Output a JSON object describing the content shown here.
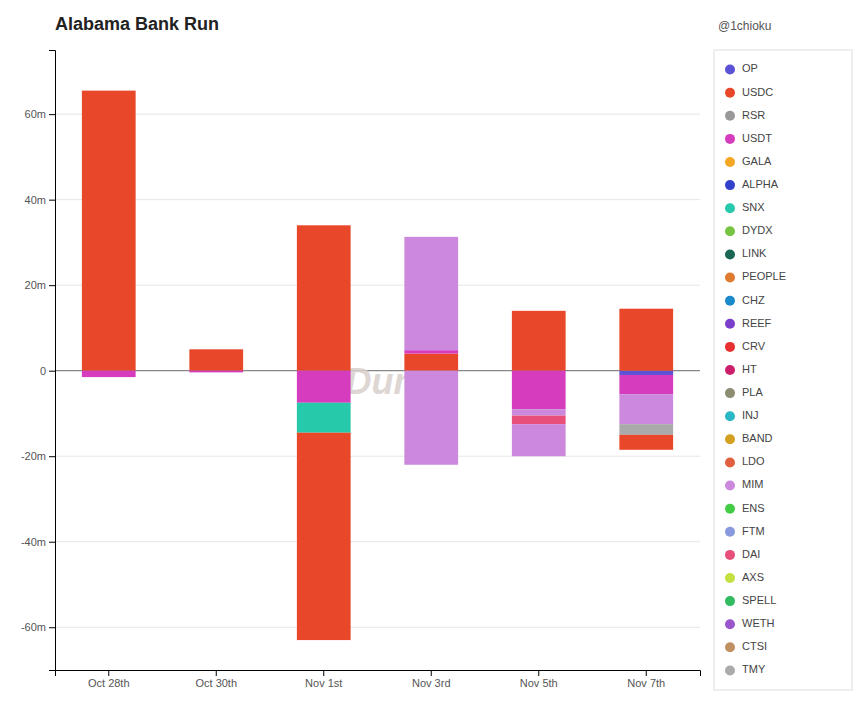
{
  "chart_data": {
    "type": "bar",
    "title": "Alabama Bank Run",
    "annotations": [
      "Dune",
      "@1chioku"
    ],
    "stacked": true,
    "grid": true,
    "legend": "right",
    "categories": [
      "Oct 28th",
      "Oct 30th",
      "Nov 1st",
      "Nov 3rd",
      "Nov 5th",
      "Nov 7th"
    ],
    "ylim": [
      -70,
      75
    ],
    "yticks": [
      {
        "value": -60,
        "label": "-60m"
      },
      {
        "value": -40,
        "label": "-40m"
      },
      {
        "value": -20,
        "label": "-20m"
      },
      0,
      {
        "value": 20,
        "label": "20m"
      },
      {
        "value": 40,
        "label": "40m"
      },
      {
        "value": 60,
        "label": "60m"
      }
    ],
    "series": [
      {
        "name": "OP",
        "color": "#5b52d6",
        "values": [
          null,
          null,
          null,
          null,
          null,
          -1.0
        ]
      },
      {
        "name": "USDC",
        "color": "#e8472a",
        "values": [
          65.5,
          5.0,
          34.0,
          4.0,
          14.0,
          14.5
        ]
      },
      {
        "name": "RSR",
        "color": "#999999",
        "values": [
          null,
          null,
          null,
          null,
          null,
          null
        ]
      },
      {
        "name": "USDT",
        "color": "#d63dbe",
        "values": [
          -1.5,
          -0.4,
          -7.5,
          0.8,
          -9.0,
          -4.5
        ]
      },
      {
        "name": "GALA",
        "color": "#f5a623",
        "values": [
          null,
          null,
          null,
          null,
          null,
          null
        ]
      },
      {
        "name": "ALPHA",
        "color": "#3340cc",
        "values": [
          null,
          null,
          null,
          null,
          null,
          null
        ]
      },
      {
        "name": "SNX",
        "color": "#26c9aa",
        "values": [
          null,
          null,
          -7.0,
          null,
          null,
          null
        ]
      },
      {
        "name": "DYDX",
        "color": "#76c442",
        "values": [
          null,
          null,
          null,
          null,
          null,
          null
        ]
      },
      {
        "name": "LINK",
        "color": "#1a6655",
        "values": [
          null,
          null,
          null,
          null,
          null,
          null
        ]
      },
      {
        "name": "PEOPLE",
        "color": "#e07a30",
        "values": [
          null,
          null,
          null,
          null,
          null,
          null
        ]
      },
      {
        "name": "CHZ",
        "color": "#1a8acc",
        "values": [
          null,
          null,
          null,
          null,
          null,
          null
        ]
      },
      {
        "name": "REEF",
        "color": "#7c3fcc",
        "values": [
          null,
          null,
          null,
          null,
          null,
          null
        ]
      },
      {
        "name": "CRV",
        "color": "#e83030",
        "values": [
          null,
          null,
          null,
          null,
          null,
          null
        ]
      },
      {
        "name": "HT",
        "color": "#cc1f6a",
        "values": [
          null,
          null,
          null,
          null,
          null,
          null
        ]
      },
      {
        "name": "PLA",
        "color": "#8c8c70",
        "values": [
          null,
          null,
          null,
          null,
          null,
          null
        ]
      },
      {
        "name": "INJ",
        "color": "#2ab8c4",
        "values": [
          null,
          null,
          null,
          null,
          null,
          null
        ]
      },
      {
        "name": "BAND",
        "color": "#d4a020",
        "values": [
          null,
          null,
          null,
          null,
          null,
          null
        ]
      },
      {
        "name": "LDO",
        "color": "#e06040",
        "values": [
          null,
          null,
          null,
          null,
          null,
          null
        ]
      },
      {
        "name": "MIM",
        "color": "#cc88dd",
        "values": [
          null,
          null,
          null,
          26.5,
          -1.5,
          -7.0
        ]
      },
      {
        "name": "ENS",
        "color": "#44cc44",
        "values": [
          null,
          null,
          null,
          null,
          null,
          null
        ]
      },
      {
        "name": "FTM",
        "color": "#8899dd",
        "values": [
          null,
          null,
          null,
          null,
          null,
          null
        ]
      },
      {
        "name": "DAI",
        "color": "#e8507a",
        "values": [
          null,
          null,
          null,
          null,
          -2.0,
          null
        ]
      },
      {
        "name": "AXS",
        "color": "#c2e040",
        "values": [
          null,
          null,
          null,
          null,
          null,
          null
        ]
      },
      {
        "name": "SPELL",
        "color": "#30bb60",
        "values": [
          null,
          null,
          null,
          null,
          null,
          null
        ]
      },
      {
        "name": "WETH",
        "color": "#9955cc",
        "values": [
          null,
          null,
          null,
          null,
          null,
          null
        ]
      },
      {
        "name": "CTSI",
        "color": "#c09060",
        "values": [
          null,
          null,
          null,
          null,
          null,
          null
        ]
      },
      {
        "name": "TMY",
        "color": "#aaaaaa",
        "values": [
          null,
          null,
          null,
          null,
          null,
          -2.5
        ]
      },
      {
        "name": "USDC",
        "color": "#e8472a",
        "values": [
          null,
          null,
          -48.5,
          null,
          null,
          -3.5
        ]
      },
      {
        "name": "MIM",
        "color": "#cc88dd",
        "values": [
          null,
          null,
          null,
          -22.0,
          -7.5,
          null
        ]
      }
    ]
  }
}
